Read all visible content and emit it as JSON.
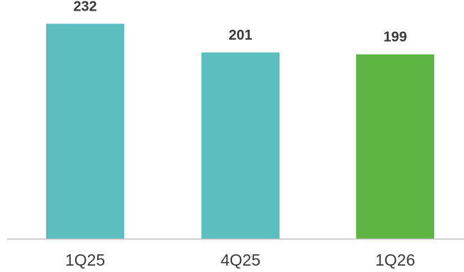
{
  "chart_data": {
    "type": "bar",
    "categories": [
      "1Q25",
      "4Q25",
      "1Q26"
    ],
    "values": [
      232,
      201,
      199
    ],
    "data_labels": [
      "232",
      "201",
      "199"
    ],
    "colors": [
      "#5bbfc0",
      "#5bbfc0",
      "#5db643"
    ],
    "axis_color": "#bfbfbf",
    "label_color": "#3a3a3a",
    "title": "",
    "xlabel": "",
    "ylabel": "",
    "ylim": [
      0,
      250
    ],
    "grid": false,
    "legend": "none"
  }
}
